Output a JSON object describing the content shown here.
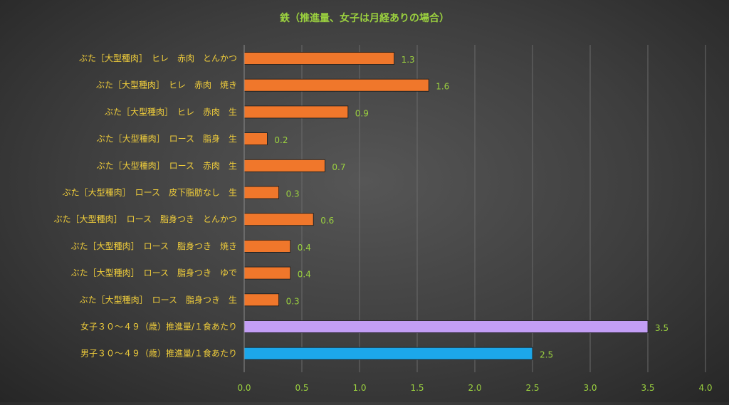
{
  "chart_data": {
    "type": "bar",
    "orientation": "horizontal",
    "title": "鉄（推進量、女子は月経ありの場合）",
    "xlabel": "",
    "ylabel": "",
    "xlim": [
      0,
      4.0
    ],
    "x_ticks": [
      "0.0",
      "0.5",
      "1.0",
      "1.5",
      "2.0",
      "2.5",
      "3.0",
      "3.5",
      "4.0"
    ],
    "grid": true,
    "legend": "none",
    "categories": [
      "ぶた［大型種肉］　ヒレ　赤肉　とんかつ",
      "ぶた［大型種肉］　ヒレ　赤肉　焼き",
      "ぶた［大型種肉］　ヒレ　赤肉　生",
      "ぶた［大型種肉］　ロース　脂身　生",
      "ぶた［大型種肉］　ロース　赤肉　生",
      "ぶた［大型種肉］　ロース　皮下脂肪なし　生",
      "ぶた［大型種肉］　ロース　脂身つき　とんかつ",
      "ぶた［大型種肉］　ロース　脂身つき　焼き",
      "ぶた［大型種肉］　ロース　脂身つき　ゆで",
      "ぶた［大型種肉］　ロース　脂身つき　生",
      "女子３０～４９（歳）推進量/１食あたり",
      "男子３０～４９（歳）推進量/１食あたり"
    ],
    "values": [
      1.3,
      1.6,
      0.9,
      0.2,
      0.7,
      0.3,
      0.6,
      0.4,
      0.4,
      0.3,
      3.5,
      2.5
    ],
    "value_labels": [
      "1.3",
      "1.6",
      "0.9",
      "0.2",
      "0.7",
      "0.3",
      "0.6",
      "0.4",
      "0.4",
      "0.3",
      "3.5",
      "2.5"
    ],
    "colors": [
      "#f0772b",
      "#f0772b",
      "#f0772b",
      "#f0772b",
      "#f0772b",
      "#f0772b",
      "#f0772b",
      "#f0772b",
      "#f0772b",
      "#f0772b",
      "#c39ef5",
      "#1ca7ea"
    ],
    "colors_meta": {
      "title": "#9bd13f",
      "category_labels": "#f1ce3b",
      "tick_labels": "#9bd13f",
      "data_labels": "#9bd13f",
      "gridlines": "#6a6a6a"
    }
  }
}
